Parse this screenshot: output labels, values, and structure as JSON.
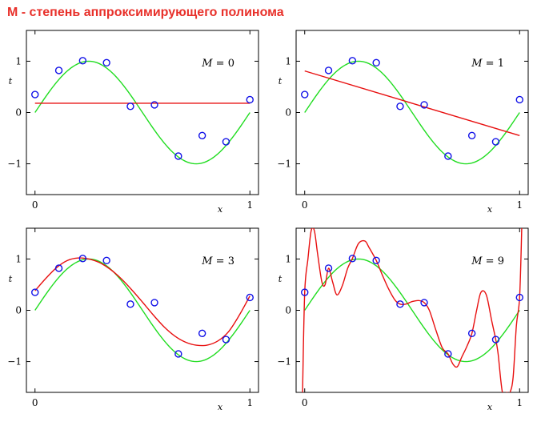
{
  "title": "М - степень аппроксимирующего полинома",
  "colors": {
    "true_curve": "#22dd22",
    "fit_curve": "#e81010",
    "points": "#1010e8",
    "title": "#e8302a"
  },
  "chart_data": [
    {
      "type": "line",
      "annotation": "M = 0",
      "annotation_var": "M",
      "annotation_val": "0",
      "xlabel": "x",
      "ylabel": "t",
      "xlim": [
        -0.04,
        1.04
      ],
      "ylim": [
        -1.6,
        1.6
      ],
      "xticks": [
        {
          "v": 0,
          "label": "0"
        },
        {
          "v": 1,
          "label": "1"
        }
      ],
      "yticks": [
        {
          "v": 1,
          "label": "1"
        },
        {
          "v": 0,
          "label": "0"
        },
        {
          "v": -1,
          "label": "−1"
        }
      ],
      "points": {
        "x": [
          0,
          0.111,
          0.222,
          0.333,
          0.444,
          0.556,
          0.667,
          0.778,
          0.889,
          1.0
        ],
        "y": [
          0.35,
          0.82,
          1.01,
          0.97,
          0.12,
          0.15,
          -0.85,
          -0.45,
          -0.57,
          0.25
        ]
      },
      "fit": {
        "x": [
          0,
          1
        ],
        "y": [
          0.18,
          0.18
        ]
      }
    },
    {
      "type": "line",
      "annotation": "M = 1",
      "annotation_var": "M",
      "annotation_val": "1",
      "xlabel": "x",
      "ylabel": "t",
      "xlim": [
        -0.04,
        1.04
      ],
      "ylim": [
        -1.6,
        1.6
      ],
      "xticks": [
        {
          "v": 0,
          "label": "0"
        },
        {
          "v": 1,
          "label": "1"
        }
      ],
      "yticks": [
        {
          "v": 1,
          "label": "1"
        },
        {
          "v": 0,
          "label": "0"
        },
        {
          "v": -1,
          "label": "−1"
        }
      ],
      "points": {
        "x": [
          0,
          0.111,
          0.222,
          0.333,
          0.444,
          0.556,
          0.667,
          0.778,
          0.889,
          1.0
        ],
        "y": [
          0.35,
          0.82,
          1.01,
          0.97,
          0.12,
          0.15,
          -0.85,
          -0.45,
          -0.57,
          0.25
        ]
      },
      "fit": {
        "x": [
          0,
          1
        ],
        "y": [
          0.81,
          -0.45
        ]
      }
    },
    {
      "type": "line",
      "annotation": "M = 3",
      "annotation_var": "M",
      "annotation_val": "3",
      "xlabel": "x",
      "ylabel": "t",
      "xlim": [
        -0.04,
        1.04
      ],
      "ylim": [
        -1.6,
        1.6
      ],
      "xticks": [
        {
          "v": 0,
          "label": "0"
        },
        {
          "v": 1,
          "label": "1"
        }
      ],
      "yticks": [
        {
          "v": 1,
          "label": "1"
        },
        {
          "v": 0,
          "label": "0"
        },
        {
          "v": -1,
          "label": "−1"
        }
      ],
      "points": {
        "x": [
          0,
          0.111,
          0.222,
          0.333,
          0.444,
          0.556,
          0.667,
          0.778,
          0.889,
          1.0
        ],
        "y": [
          0.35,
          0.82,
          1.01,
          0.97,
          0.12,
          0.15,
          -0.85,
          -0.45,
          -0.57,
          0.25
        ]
      },
      "fit": {
        "x": [
          0,
          0.05,
          0.1,
          0.15,
          0.2,
          0.25,
          0.3,
          0.35,
          0.4,
          0.45,
          0.5,
          0.55,
          0.6,
          0.65,
          0.7,
          0.75,
          0.8,
          0.85,
          0.9,
          0.95,
          1.0
        ],
        "y": [
          0.38,
          0.62,
          0.83,
          0.97,
          1.02,
          1.0,
          0.93,
          0.8,
          0.62,
          0.4,
          0.16,
          -0.09,
          -0.32,
          -0.5,
          -0.62,
          -0.68,
          -0.68,
          -0.6,
          -0.42,
          -0.1,
          0.28
        ]
      }
    },
    {
      "type": "line",
      "annotation": "M = 9",
      "annotation_var": "M",
      "annotation_val": "9",
      "xlabel": "x",
      "ylabel": "t",
      "xlim": [
        -0.04,
        1.04
      ],
      "ylim": [
        -1.6,
        1.6
      ],
      "xticks": [
        {
          "v": 0,
          "label": "0"
        },
        {
          "v": 1,
          "label": "1"
        }
      ],
      "yticks": [
        {
          "v": 1,
          "label": "1"
        },
        {
          "v": 0,
          "label": "0"
        },
        {
          "v": -1,
          "label": "−1"
        }
      ],
      "points": {
        "x": [
          0,
          0.111,
          0.222,
          0.333,
          0.444,
          0.556,
          0.667,
          0.778,
          0.889,
          1.0
        ],
        "y": [
          0.35,
          0.82,
          1.01,
          0.97,
          0.12,
          0.15,
          -0.85,
          -0.45,
          -0.57,
          0.25
        ]
      },
      "fit": {
        "x": [
          -0.01,
          0,
          0.015,
          0.03,
          0.045,
          0.06,
          0.08,
          0.095,
          0.111,
          0.13,
          0.15,
          0.175,
          0.2,
          0.222,
          0.25,
          0.28,
          0.3,
          0.333,
          0.36,
          0.39,
          0.42,
          0.444,
          0.47,
          0.5,
          0.53,
          0.556,
          0.58,
          0.61,
          0.64,
          0.667,
          0.69,
          0.71,
          0.73,
          0.755,
          0.778,
          0.8,
          0.82,
          0.845,
          0.87,
          0.889,
          0.9,
          0.92,
          0.94,
          0.955,
          0.97,
          0.985,
          1.0,
          1.01
        ],
        "y": [
          -1.6,
          0.35,
          1.0,
          1.55,
          1.55,
          1.1,
          0.55,
          0.5,
          0.82,
          0.55,
          0.3,
          0.48,
          0.82,
          1.01,
          1.3,
          1.35,
          1.22,
          0.97,
          0.7,
          0.42,
          0.2,
          0.12,
          0.12,
          0.17,
          0.19,
          0.15,
          0.0,
          -0.38,
          -0.73,
          -0.85,
          -1.05,
          -1.1,
          -0.92,
          -0.7,
          -0.45,
          0.0,
          0.35,
          0.3,
          -0.2,
          -0.57,
          -0.85,
          -1.6,
          -1.6,
          -1.6,
          -1.3,
          -0.3,
          0.25,
          1.6
        ]
      }
    }
  ]
}
